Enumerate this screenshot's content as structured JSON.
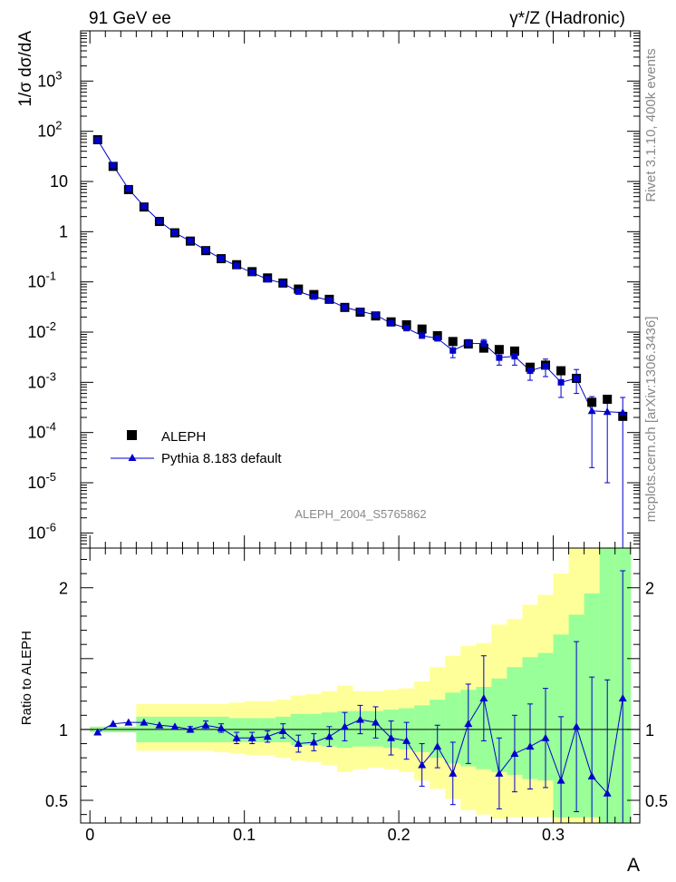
{
  "header": {
    "left_title": "91 GeV ee",
    "right_title": "γ*/Z (Hadronic)"
  },
  "side_text": {
    "rivet": "Rivet 3.1.10,  400k events",
    "mcplots": "mcplots.cern.ch [arXiv:1306.3436]"
  },
  "analysis_label": "ALEPH_2004_S5765862",
  "chart_data": [
    {
      "type": "scatter",
      "name": "main",
      "ylabel": "1/σ  dσ/dA",
      "ylim": [
        5e-07,
        10000.0
      ],
      "yscale": "log",
      "xlim": [
        -0.006,
        0.356
      ],
      "y_ticks": [
        "10^{-6}",
        "10^{-5}",
        "10^{-4}",
        "10^{-3}",
        "10^{-2}",
        "10^{-1}",
        "1",
        "10",
        "10^{2}",
        "10^{3}"
      ],
      "legend_position": "lower-left",
      "x": [
        0.005,
        0.015,
        0.025,
        0.035,
        0.045,
        0.055,
        0.065,
        0.075,
        0.085,
        0.095,
        0.105,
        0.115,
        0.125,
        0.135,
        0.145,
        0.155,
        0.165,
        0.175,
        0.185,
        0.195,
        0.205,
        0.215,
        0.225,
        0.235,
        0.245,
        0.255,
        0.265,
        0.275,
        0.285,
        0.295,
        0.305,
        0.315,
        0.325,
        0.335,
        0.345
      ],
      "series": [
        {
          "name": "ALEPH",
          "marker": "square",
          "color": "#000000",
          "values": [
            68,
            20,
            6.9,
            3.1,
            1.6,
            0.95,
            0.65,
            0.42,
            0.29,
            0.22,
            0.16,
            0.12,
            0.095,
            0.072,
            0.056,
            0.045,
            0.031,
            0.025,
            0.021,
            0.016,
            0.014,
            0.0115,
            0.0085,
            0.0065,
            0.0058,
            0.0048,
            0.0045,
            0.0042,
            0.002,
            0.0022,
            0.0017,
            0.0012,
            0.0004,
            0.00046,
            0.00021
          ]
        },
        {
          "name": "Pythia 8.183 default",
          "marker": "triangle",
          "color": "#0000cc",
          "values": [
            67,
            21,
            7.1,
            3.2,
            1.62,
            0.95,
            0.65,
            0.43,
            0.29,
            0.21,
            0.153,
            0.113,
            0.094,
            0.064,
            0.051,
            0.043,
            0.031,
            0.026,
            0.022,
            0.015,
            0.012,
            0.0085,
            0.0075,
            0.0043,
            0.006,
            0.0059,
            0.0031,
            0.0033,
            0.0017,
            0.0021,
            0.001,
            0.0012,
            0.00027,
            0.00026,
            0.00025
          ],
          "errors_up": [
            0,
            0,
            0,
            0,
            0,
            0,
            0,
            0,
            0,
            0,
            0,
            0,
            0,
            0,
            0,
            0,
            0,
            0,
            0,
            0,
            0,
            0,
            0,
            0.0012,
            0.0011,
            0.0012,
            0.0009,
            0.0011,
            0.0006,
            0.0008,
            0.0005,
            0.0006,
            0.00025,
            0.00025,
            0.00025
          ]
        }
      ]
    },
    {
      "type": "scatter",
      "name": "ratio",
      "ylabel": "Ratio to ALEPH",
      "xlabel": "A",
      "ylim": [
        0.34,
        2.28
      ],
      "y_ticks": [
        0.5,
        1,
        2
      ],
      "x_ticks": [
        0,
        0.1,
        0.2,
        0.3
      ],
      "x": [
        0.005,
        0.015,
        0.025,
        0.035,
        0.045,
        0.055,
        0.065,
        0.075,
        0.085,
        0.095,
        0.105,
        0.115,
        0.125,
        0.135,
        0.145,
        0.155,
        0.165,
        0.175,
        0.185,
        0.195,
        0.205,
        0.215,
        0.225,
        0.235,
        0.245,
        0.255,
        0.265,
        0.275,
        0.285,
        0.295,
        0.305,
        0.315,
        0.325,
        0.335,
        0.345
      ],
      "band_green": [
        [
          0.98,
          1.02
        ],
        [
          0.98,
          1.02
        ],
        [
          0.98,
          1.02
        ],
        [
          0.91,
          1.09
        ],
        [
          0.91,
          1.09
        ],
        [
          0.91,
          1.09
        ],
        [
          0.91,
          1.09
        ],
        [
          0.91,
          1.09
        ],
        [
          0.91,
          1.09
        ],
        [
          0.91,
          1.08
        ],
        [
          0.91,
          1.08
        ],
        [
          0.91,
          1.08
        ],
        [
          0.91,
          1.09
        ],
        [
          0.89,
          1.11
        ],
        [
          0.89,
          1.11
        ],
        [
          0.88,
          1.12
        ],
        [
          0.87,
          1.13
        ],
        [
          0.88,
          1.13
        ],
        [
          0.88,
          1.13
        ],
        [
          0.87,
          1.14
        ],
        [
          0.86,
          1.15
        ],
        [
          0.84,
          1.17
        ],
        [
          0.8,
          1.21
        ],
        [
          0.76,
          1.26
        ],
        [
          0.74,
          1.28
        ],
        [
          0.72,
          1.3
        ],
        [
          0.7,
          1.36
        ],
        [
          0.68,
          1.44
        ],
        [
          0.65,
          1.51
        ],
        [
          0.64,
          1.54
        ],
        [
          0.38,
          1.67
        ],
        [
          0.38,
          1.81
        ],
        [
          0.38,
          1.96
        ],
        [
          0.34,
          2.28
        ],
        [
          0.34,
          2.28
        ]
      ],
      "band_yellow": [
        [
          0.98,
          1.02
        ],
        [
          0.98,
          1.02
        ],
        [
          0.98,
          1.02
        ],
        [
          0.85,
          1.18
        ],
        [
          0.85,
          1.18
        ],
        [
          0.85,
          1.18
        ],
        [
          0.85,
          1.18
        ],
        [
          0.85,
          1.18
        ],
        [
          0.84,
          1.18
        ],
        [
          0.83,
          1.19
        ],
        [
          0.82,
          1.2
        ],
        [
          0.82,
          1.2
        ],
        [
          0.8,
          1.21
        ],
        [
          0.78,
          1.24
        ],
        [
          0.77,
          1.25
        ],
        [
          0.75,
          1.27
        ],
        [
          0.7,
          1.31
        ],
        [
          0.72,
          1.27
        ],
        [
          0.73,
          1.27
        ],
        [
          0.72,
          1.28
        ],
        [
          0.7,
          1.29
        ],
        [
          0.64,
          1.34
        ],
        [
          0.58,
          1.44
        ],
        [
          0.51,
          1.52
        ],
        [
          0.43,
          1.59
        ],
        [
          0.4,
          1.61
        ],
        [
          0.37,
          1.74
        ],
        [
          0.38,
          1.78
        ],
        [
          0.38,
          1.88
        ],
        [
          0.38,
          1.95
        ],
        [
          0.34,
          2.1
        ],
        [
          0.34,
          2.28
        ],
        [
          0.34,
          2.28
        ],
        [
          0.34,
          2.28
        ],
        [
          0.34,
          2.28
        ]
      ],
      "series": [
        {
          "name": "Pythia 8.183 default",
          "marker": "triangle",
          "color": "#0000cc",
          "values": [
            0.98,
            1.04,
            1.05,
            1.05,
            1.03,
            1.02,
            1.0,
            1.03,
            1.01,
            0.94,
            0.94,
            0.95,
            0.99,
            0.9,
            0.91,
            0.95,
            1.02,
            1.07,
            1.05,
            0.94,
            0.92,
            0.75,
            0.88,
            0.69,
            1.04,
            1.22,
            0.69,
            0.83,
            0.88,
            0.94,
            0.64,
            1.02,
            0.67,
            0.55,
            1.22
          ],
          "errors": [
            0,
            0,
            0,
            0,
            0,
            0,
            0.02,
            0.03,
            0.03,
            0.04,
            0.04,
            0.04,
            0.05,
            0.06,
            0.06,
            0.07,
            0.1,
            0.1,
            0.11,
            0.12,
            0.13,
            0.15,
            0.15,
            0.22,
            0.28,
            0.3,
            0.25,
            0.27,
            0.3,
            0.35,
            0.45,
            0.6,
            0.7,
            0.8,
            0.9
          ]
        }
      ]
    }
  ]
}
